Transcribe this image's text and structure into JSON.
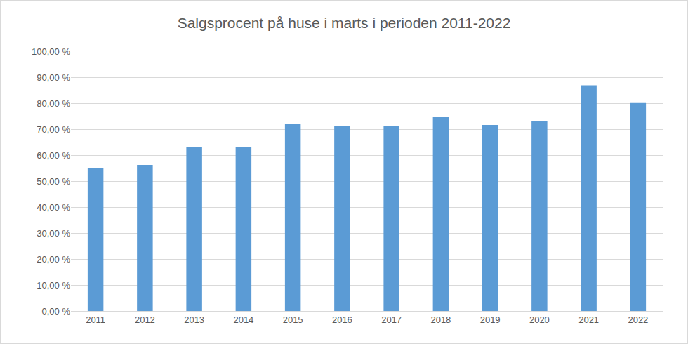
{
  "chart_data": {
    "type": "bar",
    "title": "Salgsprocent på huse i marts i perioden 2011-2022",
    "categories": [
      "2011",
      "2012",
      "2013",
      "2014",
      "2015",
      "2016",
      "2017",
      "2018",
      "2019",
      "2020",
      "2021",
      "2022"
    ],
    "values": [
      55.1,
      56.2,
      63.0,
      63.2,
      72.0,
      71.2,
      71.1,
      74.6,
      71.6,
      73.2,
      86.9,
      80.1
    ],
    "color": "#5b9bd5",
    "ylim": [
      0,
      100
    ],
    "yticks": [
      {
        "value": 0,
        "label": "0,00 %"
      },
      {
        "value": 10,
        "label": "10,00 %"
      },
      {
        "value": 20,
        "label": "20,00 %"
      },
      {
        "value": 30,
        "label": "30,00 %"
      },
      {
        "value": 40,
        "label": "40,00 %"
      },
      {
        "value": 50,
        "label": "50,00 %"
      },
      {
        "value": 60,
        "label": "60,00 %"
      },
      {
        "value": 70,
        "label": "70,00 %"
      },
      {
        "value": 80,
        "label": "80,00 %"
      },
      {
        "value": 90,
        "label": "90,00 %"
      },
      {
        "value": 100,
        "label": "100,00 %"
      }
    ],
    "grid": true
  }
}
